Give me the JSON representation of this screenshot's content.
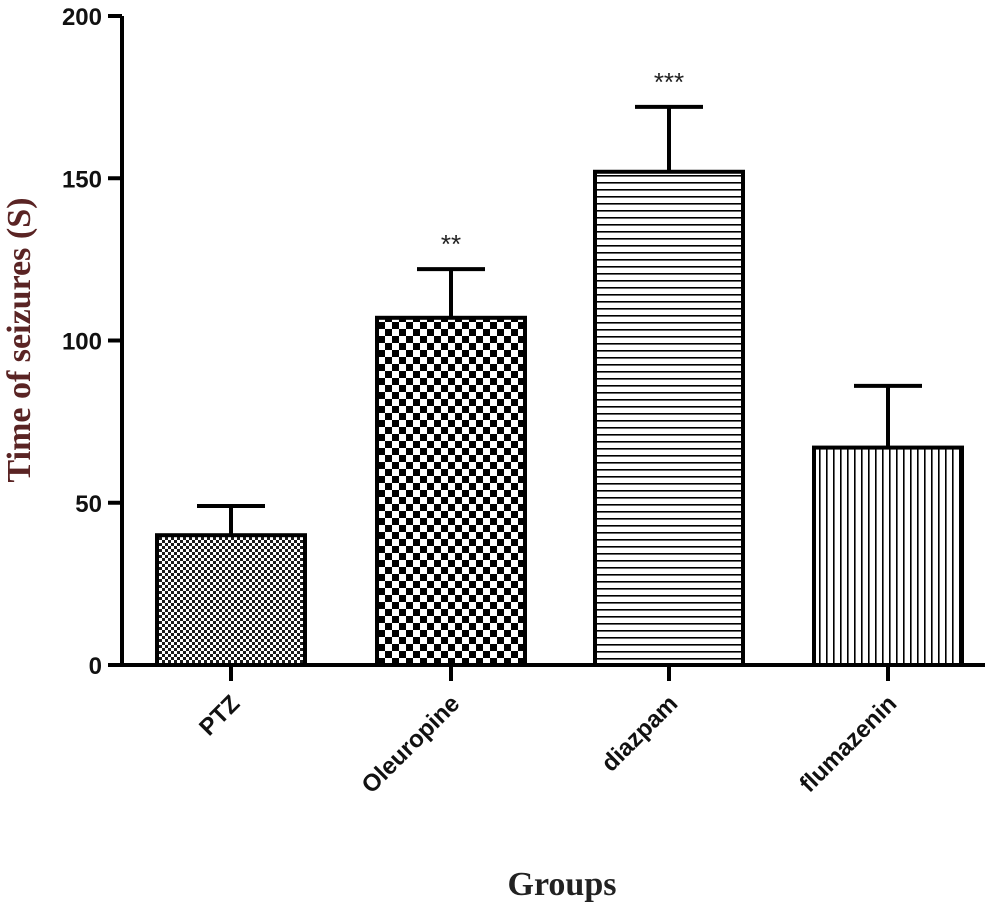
{
  "chart_data": {
    "type": "bar",
    "title": "",
    "xlabel": "Groups",
    "ylabel": "Time of  seizures (S)",
    "ylim": [
      0,
      200
    ],
    "yticks": [
      0,
      50,
      100,
      150,
      200
    ],
    "categories": [
      "PTZ",
      "Oleuropine",
      "diazpam",
      "flumazenin"
    ],
    "values": [
      40,
      107,
      152,
      67
    ],
    "errors": [
      9,
      15,
      20,
      19
    ],
    "annotations": [
      "",
      "**",
      "***",
      ""
    ],
    "patterns": [
      "fine-crosshatch",
      "checkerboard",
      "horizontal-lines",
      "vertical-lines"
    ],
    "grid": false,
    "legend": "none",
    "colors": {
      "stroke": "#000000",
      "fill": "#ffffff",
      "ylabel": "#5a2424"
    }
  }
}
